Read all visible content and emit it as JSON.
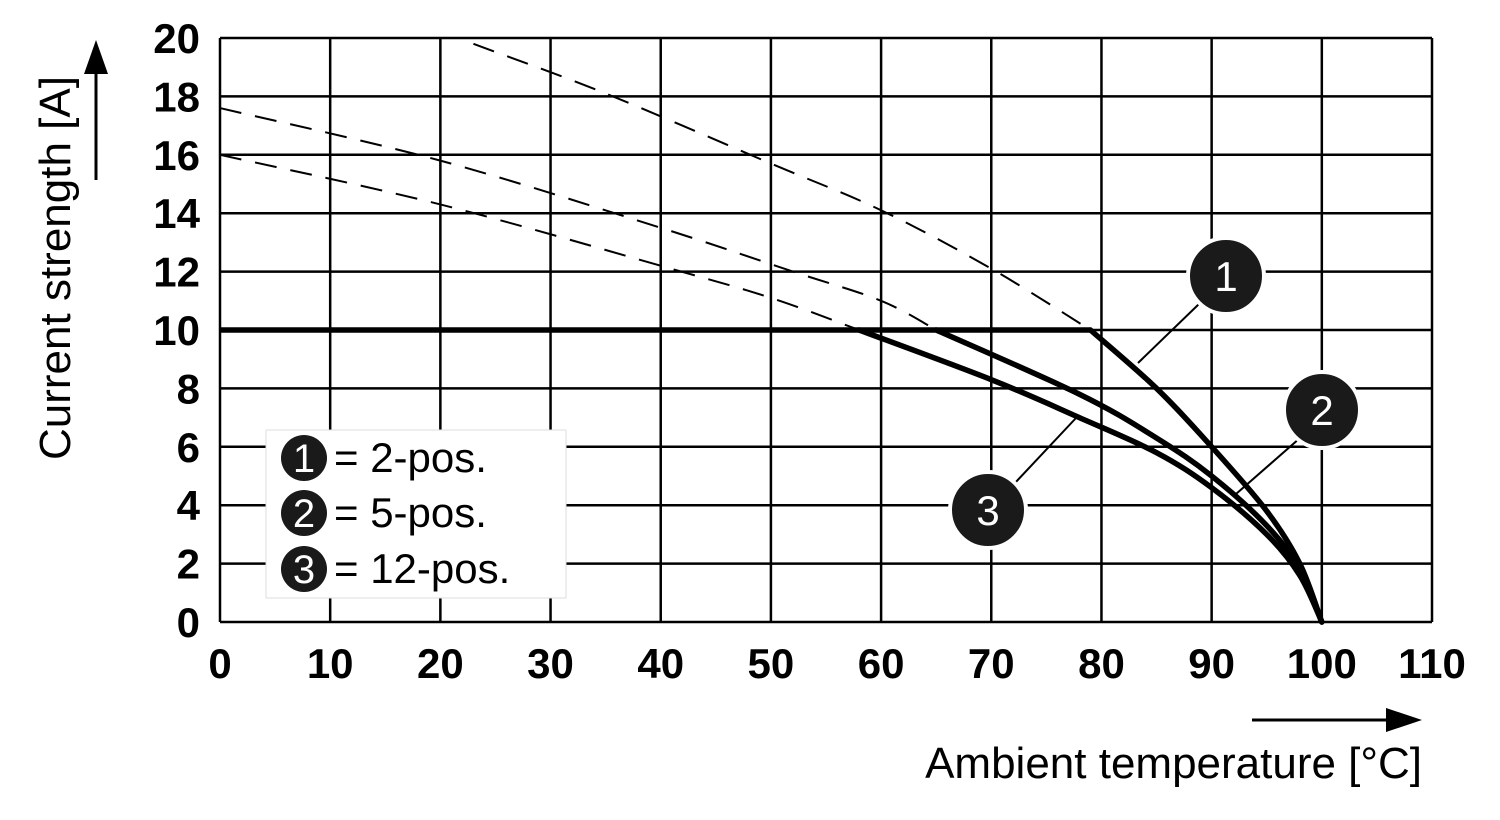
{
  "chart_data": {
    "type": "line",
    "title": "",
    "xlabel": "Ambient temperature [°C]",
    "ylabel": "Current strength [A]",
    "xlim": [
      0,
      110
    ],
    "ylim": [
      0,
      20
    ],
    "x_ticks": [
      "0",
      "10",
      "20",
      "30",
      "40",
      "50",
      "60",
      "70",
      "80",
      "90",
      "100",
      "110"
    ],
    "y_ticks": [
      "0",
      "2",
      "4",
      "6",
      "8",
      "10",
      "12",
      "14",
      "16",
      "18",
      "20"
    ],
    "grid": true,
    "legend_position": "bottom-left",
    "legend": [
      {
        "marker": "1",
        "text": "= 2-pos."
      },
      {
        "marker": "2",
        "text": "= 5-pos."
      },
      {
        "marker": "3",
        "text": "= 12-pos."
      }
    ],
    "series": [
      {
        "marker": "1",
        "solid": [
          [
            0,
            10
          ],
          [
            79,
            10
          ],
          [
            85,
            8
          ],
          [
            90,
            6
          ],
          [
            95,
            3.8
          ],
          [
            98,
            2
          ],
          [
            100,
            0
          ]
        ],
        "dashed": [
          [
            23,
            19.8
          ],
          [
            35,
            18.1
          ],
          [
            50,
            15.7
          ],
          [
            60,
            14.1
          ],
          [
            70,
            12.1
          ],
          [
            79,
            10
          ]
        ]
      },
      {
        "marker": "2",
        "solid": [
          [
            65,
            10
          ],
          [
            78,
            7.8
          ],
          [
            85,
            6.3
          ],
          [
            90,
            5.0
          ],
          [
            95,
            3.3
          ],
          [
            98,
            1.8
          ],
          [
            100,
            0
          ]
        ],
        "dashed": [
          [
            0,
            17.6
          ],
          [
            20,
            15.8
          ],
          [
            40,
            13.5
          ],
          [
            52,
            12.0
          ],
          [
            60,
            11.0
          ],
          [
            65,
            10
          ]
        ]
      },
      {
        "marker": "3",
        "solid": [
          [
            58,
            10
          ],
          [
            70,
            8.3
          ],
          [
            78,
            7.0
          ],
          [
            85,
            5.8
          ],
          [
            90,
            4.6
          ],
          [
            95,
            3.0
          ],
          [
            98,
            1.6
          ],
          [
            100,
            0
          ]
        ],
        "dashed": [
          [
            0,
            16
          ],
          [
            20,
            14.3
          ],
          [
            40,
            12.2
          ],
          [
            50,
            11.1
          ],
          [
            58,
            10
          ]
        ]
      }
    ],
    "line_color": "#000000",
    "marker_fill": "#1a1a1a"
  }
}
